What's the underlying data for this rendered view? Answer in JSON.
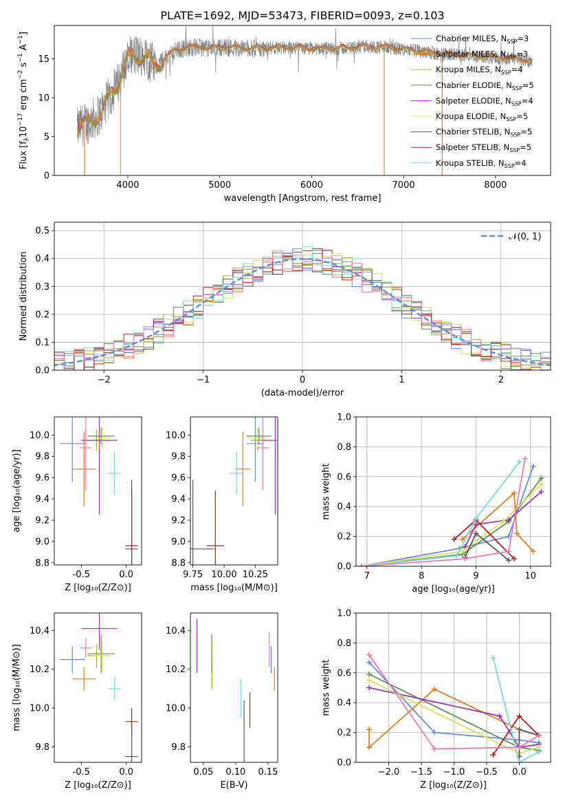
{
  "title": "PLATE=1692, MJD=53473, FIBERID=0093, z=0.103",
  "colors": {
    "Chabrier MILES": "#6a8ad8",
    "Salpeter MILES": "#e07b22",
    "Kroupa MILES": "#b3a44a",
    "Chabrier ELODIE": "#5a8f4e",
    "Salpeter ELODIE": "#9a34b4",
    "Kroupa ELODIE": "#d8e060",
    "Chabrier STELIB": "#555555",
    "Salpeter STELIB": "#b01e1e",
    "Kroupa STELIB": "#7fd8d8",
    "pink": "#e87ab4",
    "gaussian": "#5b8fd8"
  },
  "legend_spectrum": [
    {
      "name": "Chabrier MILES",
      "n": "3"
    },
    {
      "name": "Salpeter MILES",
      "n": "3"
    },
    {
      "name": "Kroupa MILES",
      "n": "4"
    },
    {
      "name": "Chabrier ELODIE",
      "n": "5"
    },
    {
      "name": "Salpeter ELODIE",
      "n": "4"
    },
    {
      "name": "Kroupa ELODIE",
      "n": "5"
    },
    {
      "name": "Chabrier STELIB",
      "n": "5"
    },
    {
      "name": "Salpeter STELIB",
      "n": "5"
    },
    {
      "name": "Kroupa STELIB",
      "n": "4"
    }
  ],
  "legend_nsub": "SSP",
  "chart_data": [
    {
      "id": "spectrum",
      "type": "line",
      "xlabel": "wavelength [Angstrom, rest frame]",
      "ylabel": "Flux [f",
      "xlim": [
        3200,
        8600
      ],
      "ylim": [
        0,
        19.3
      ],
      "xticks": [
        4000,
        5000,
        6000,
        7000,
        8000
      ],
      "yticks": [
        0,
        5,
        10,
        15
      ],
      "envelope": {
        "x": [
          3450,
          3500,
          3600,
          3700,
          3800,
          3900,
          4000,
          4100,
          4200,
          4300,
          4400,
          4500,
          4600,
          4700,
          4800,
          4900,
          5000,
          5200,
          5400,
          5600,
          5800,
          6000,
          6200,
          6400,
          6600,
          6800,
          7000,
          7200,
          7400,
          7600,
          7800,
          8000,
          8200,
          8400
        ],
        "y": [
          6,
          6.5,
          7,
          8,
          10,
          12,
          15,
          15.5,
          15.2,
          14,
          15,
          16,
          16.3,
          16.5,
          16.5,
          16.3,
          16.5,
          16.4,
          16.3,
          16.4,
          16.4,
          16.3,
          16.3,
          16.4,
          16.6,
          16.5,
          16.2,
          16.0,
          15.6,
          15.5,
          15.3,
          15.2,
          15.0,
          14.7
        ]
      }
    },
    {
      "id": "residuals",
      "type": "histogram",
      "xlabel": "(data-model)/error",
      "ylabel": "Normed distribution",
      "xlim": [
        -2.5,
        2.5
      ],
      "ylim": [
        0,
        0.53
      ],
      "xticks": [
        "−2",
        "−1",
        "0",
        "1",
        "2"
      ],
      "xtick_values": [
        -2,
        -1,
        0,
        1,
        2
      ],
      "yticks": [
        0.0,
        0.1,
        0.2,
        0.3,
        0.4,
        0.5
      ],
      "legend": "𝒩(0, 1)",
      "gaussian": {
        "mean": 0,
        "sigma": 1
      }
    },
    {
      "id": "age_vs_Z",
      "type": "errorbar",
      "xlabel": "Z [log₁₀(Z/Z⊙)]",
      "ylabel": "age  [log₁₀(age/yr)]",
      "xlim": [
        -0.8,
        0.17
      ],
      "ylim": [
        8.78,
        10.17
      ],
      "xticks": [
        -0.5,
        0.0
      ],
      "yticks": [
        8.8,
        9.0,
        9.2,
        9.4,
        9.6,
        9.8,
        10.0
      ],
      "points": [
        {
          "s": "Chabrier MILES",
          "x": -0.6,
          "y": 9.92,
          "xe": 0.14,
          "ye": 0.36
        },
        {
          "s": "Salpeter MILES",
          "x": -0.47,
          "y": 9.68,
          "xe": 0.13,
          "ye": 0.35
        },
        {
          "s": "Kroupa MILES",
          "x": -0.33,
          "y": 9.95,
          "xe": 0.1,
          "ye": 0.1
        },
        {
          "s": "Chabrier ELODIE",
          "x": -0.28,
          "y": 9.99,
          "xe": 0.15,
          "ye": 0.08
        },
        {
          "s": "Salpeter ELODIE",
          "x": -0.3,
          "y": 9.95,
          "xe": 0.2,
          "ye": 0.7
        },
        {
          "s": "Kroupa ELODIE",
          "x": -0.27,
          "y": 9.97,
          "xe": 0.1,
          "ye": 0.1
        },
        {
          "s": "Chabrier STELIB",
          "x": 0.06,
          "y": 8.93,
          "xe": 0.07,
          "ye": 0.65
        },
        {
          "s": "Salpeter STELIB",
          "x": 0.06,
          "y": 8.96,
          "xe": 0.07,
          "ye": 0.52
        },
        {
          "s": "Kroupa STELIB",
          "x": -0.13,
          "y": 9.64,
          "xe": 0.07,
          "ye": 0.2
        },
        {
          "s": "pink",
          "x": -0.45,
          "y": 9.88,
          "xe": 0.06,
          "ye": 0.4
        }
      ]
    },
    {
      "id": "age_vs_mass",
      "type": "errorbar",
      "xlabel": "mass [log₁₀(M/M⊙)]",
      "xlim": [
        9.73,
        10.43
      ],
      "ylim": [
        8.78,
        10.17
      ],
      "xticks": [
        9.75,
        10.0,
        10.25
      ],
      "yticks": [
        8.8,
        9.0,
        9.2,
        9.4,
        9.6,
        9.8,
        10.0
      ],
      "points": [
        {
          "s": "Chabrier MILES",
          "x": 10.25,
          "y": 9.92,
          "xe": 0.07,
          "ye": 0.36
        },
        {
          "s": "Salpeter MILES",
          "x": 10.15,
          "y": 9.68,
          "xe": 0.06,
          "ye": 0.35
        },
        {
          "s": "Kroupa MILES",
          "x": 10.27,
          "y": 9.95,
          "xe": 0.06,
          "ye": 0.1
        },
        {
          "s": "Chabrier ELODIE",
          "x": 10.28,
          "y": 9.99,
          "xe": 0.1,
          "ye": 0.08
        },
        {
          "s": "Salpeter ELODIE",
          "x": 10.41,
          "y": 9.95,
          "xe": 0.11,
          "ye": 0.7
        },
        {
          "s": "Kroupa ELODIE",
          "x": 10.27,
          "y": 9.97,
          "xe": 0.08,
          "ye": 0.1
        },
        {
          "s": "Chabrier STELIB",
          "x": 9.75,
          "y": 8.93,
          "xe": 0.17,
          "ye": 0.65
        },
        {
          "s": "Salpeter STELIB",
          "x": 9.93,
          "y": 8.96,
          "xe": 0.07,
          "ye": 0.52
        },
        {
          "s": "Kroupa STELIB",
          "x": 10.1,
          "y": 9.64,
          "xe": 0.06,
          "ye": 0.2
        },
        {
          "s": "pink",
          "x": 10.31,
          "y": 9.88,
          "xe": 0.05,
          "ye": 0.4
        }
      ]
    },
    {
      "id": "massweight_vs_age",
      "type": "line",
      "xlabel": "age  [log₁₀(age/yr)]",
      "ylabel": "mass weight",
      "xlim": [
        6.8,
        10.37
      ],
      "ylim": [
        0,
        1
      ],
      "xticks": [
        7,
        8,
        9,
        10
      ],
      "yticks": [
        0.0,
        0.2,
        0.4,
        0.6,
        0.8,
        1.0
      ],
      "series": [
        {
          "s": "Chabrier MILES",
          "x": [
            6.9,
            8.7,
            9.6,
            10.05
          ],
          "y": [
            0.0,
            0.12,
            0.2,
            0.67
          ]
        },
        {
          "s": "Salpeter MILES",
          "x": [
            8.75,
            9.7,
            9.75,
            10.05
          ],
          "y": [
            0.18,
            0.49,
            0.22,
            0.1
          ]
        },
        {
          "s": "Chabrier ELODIE",
          "x": [
            6.9,
            8.75,
            9.6,
            10.2
          ],
          "y": [
            0.0,
            0.08,
            0.3,
            0.59
          ]
        },
        {
          "s": "Salpeter ELODIE",
          "x": [
            8.8,
            9.0,
            9.6,
            10.2
          ],
          "y": [
            0.13,
            0.28,
            0.31,
            0.5
          ]
        },
        {
          "s": "Kroupa ELODIE",
          "x": [
            6.9,
            8.75,
            9.5,
            10.2
          ],
          "y": [
            0.0,
            0.1,
            0.3,
            0.55
          ]
        },
        {
          "s": "Salpeter STELIB",
          "x": [
            8.6,
            9.0,
            9.7
          ],
          "y": [
            0.18,
            0.31,
            0.05
          ]
        },
        {
          "s": "Chabrier STELIB",
          "x": [
            8.8,
            9.0,
            9.6
          ],
          "y": [
            0.06,
            0.22,
            0.04
          ]
        },
        {
          "s": "Kroupa STELIB",
          "x": [
            6.9,
            8.65,
            9.0,
            9.8
          ],
          "y": [
            0.0,
            0.07,
            0.32,
            0.7
          ]
        },
        {
          "s": "pink",
          "x": [
            6.9,
            8.8,
            9.6,
            9.9
          ],
          "y": [
            0.0,
            0.05,
            0.1,
            0.72
          ]
        }
      ]
    },
    {
      "id": "mass_vs_Z",
      "type": "errorbar",
      "xlabel": "Z [log₁₀(Z/Z⊙)]",
      "ylabel": "mass [log₁₀(M/M⊙)]",
      "xlim": [
        -0.8,
        0.17
      ],
      "ylim": [
        9.72,
        10.49
      ],
      "xticks": [
        -0.5,
        0.0
      ],
      "yticks": [
        9.8,
        10.0,
        10.2,
        10.4
      ],
      "points": [
        {
          "s": "Chabrier MILES",
          "x": -0.6,
          "y": 10.25,
          "xe": 0.14,
          "ye": 0.07
        },
        {
          "s": "Salpeter MILES",
          "x": -0.47,
          "y": 10.15,
          "xe": 0.13,
          "ye": 0.06
        },
        {
          "s": "Kroupa MILES",
          "x": -0.33,
          "y": 10.27,
          "xe": 0.1,
          "ye": 0.06
        },
        {
          "s": "Chabrier ELODIE",
          "x": -0.28,
          "y": 10.28,
          "xe": 0.15,
          "ye": 0.1
        },
        {
          "s": "Salpeter ELODIE",
          "x": -0.3,
          "y": 10.41,
          "xe": 0.2,
          "ye": 0.11
        },
        {
          "s": "Kroupa ELODIE",
          "x": -0.27,
          "y": 10.27,
          "xe": 0.1,
          "ye": 0.08
        },
        {
          "s": "Chabrier STELIB",
          "x": 0.06,
          "y": 9.75,
          "xe": 0.07,
          "ye": 0.17
        },
        {
          "s": "Salpeter STELIB",
          "x": 0.06,
          "y": 9.93,
          "xe": 0.07,
          "ye": 0.07
        },
        {
          "s": "Kroupa STELIB",
          "x": -0.13,
          "y": 10.1,
          "xe": 0.07,
          "ye": 0.06
        },
        {
          "s": "pink",
          "x": -0.45,
          "y": 10.31,
          "xe": 0.06,
          "ye": 0.05
        }
      ]
    },
    {
      "id": "mass_vs_EBV",
      "type": "errorbar",
      "xlabel": "E(B-V)",
      "xlim": [
        0.03,
        0.165
      ],
      "ylim": [
        9.72,
        10.49
      ],
      "xticks": [
        0.05,
        0.1,
        0.15
      ],
      "yticks": [
        9.8,
        10.0,
        10.2,
        10.4
      ],
      "points": [
        {
          "s": "Chabrier MILES",
          "x": 0.155,
          "y": 10.25,
          "ye": 0.07
        },
        {
          "s": "Salpeter MILES",
          "x": 0.16,
          "y": 10.15,
          "ye": 0.06
        },
        {
          "s": "Kroupa MILES",
          "x": 0.063,
          "y": 10.22,
          "ye": 0.12
        },
        {
          "s": "Chabrier ELODIE",
          "x": 0.063,
          "y": 10.28,
          "ye": 0.1
        },
        {
          "s": "Salpeter ELODIE",
          "x": 0.04,
          "y": 10.32,
          "ye": 0.14
        },
        {
          "s": "Kroupa ELODIE",
          "x": 0.064,
          "y": 10.22,
          "ye": 0.13
        },
        {
          "s": "Chabrier STELIB",
          "x": 0.113,
          "y": 9.87,
          "ye": 0.17
        },
        {
          "s": "Salpeter STELIB",
          "x": 0.122,
          "y": 9.99,
          "ye": 0.09
        },
        {
          "s": "Kroupa STELIB",
          "x": 0.108,
          "y": 10.05,
          "ye": 0.1
        },
        {
          "s": "pink",
          "x": 0.152,
          "y": 10.3,
          "ye": 0.09
        }
      ]
    },
    {
      "id": "massweight_vs_Z",
      "type": "line",
      "xlabel": "Z [log₁₀(Z/Z⊙)]",
      "ylabel": "mass weight",
      "xlim": [
        -2.5,
        0.48
      ],
      "ylim": [
        0,
        1
      ],
      "xticks": [
        "−2.0",
        "−1.5",
        "−1.0",
        "−0.5",
        "0.0"
      ],
      "xtick_values": [
        -2.0,
        -1.5,
        -1.0,
        -0.5,
        0.0
      ],
      "yticks": [
        0.0,
        0.2,
        0.4,
        0.6,
        0.8,
        1.0
      ],
      "series": [
        {
          "s": "Chabrier MILES",
          "x": [
            -2.3,
            -1.3,
            0.0,
            0.3
          ],
          "y": [
            0.67,
            0.2,
            0.15,
            0.13
          ]
        },
        {
          "s": "Salpeter MILES",
          "x": [
            -2.3,
            -2.3,
            -1.3,
            0.0,
            0.3
          ],
          "y": [
            0.22,
            0.1,
            0.49,
            0.22,
            0.18
          ]
        },
        {
          "s": "Chabrier ELODIE",
          "x": [
            -2.3,
            0.0,
            0.3
          ],
          "y": [
            0.59,
            0.1,
            0.08
          ]
        },
        {
          "s": "Salpeter ELODIE",
          "x": [
            -2.3,
            -0.3,
            0.0,
            0.3
          ],
          "y": [
            0.5,
            0.31,
            0.1,
            0.12
          ]
        },
        {
          "s": "Kroupa ELODIE",
          "x": [
            -2.3,
            0.0,
            0.3
          ],
          "y": [
            0.55,
            0.06,
            0.1
          ]
        },
        {
          "s": "Salpeter STELIB",
          "x": [
            -0.4,
            0.0,
            0.3
          ],
          "y": [
            0.05,
            0.31,
            0.18
          ]
        },
        {
          "s": "Chabrier STELIB",
          "x": [
            0.0,
            0.0,
            0.3
          ],
          "y": [
            0.04,
            0.22,
            0.18
          ]
        },
        {
          "s": "Kroupa STELIB",
          "x": [
            -0.4,
            0.0,
            0.3
          ],
          "y": [
            0.7,
            0.0,
            0.07
          ]
        },
        {
          "s": "pink",
          "x": [
            -2.3,
            -1.3,
            0.0,
            0.3
          ],
          "y": [
            0.72,
            0.09,
            0.1,
            0.18
          ]
        }
      ]
    }
  ]
}
